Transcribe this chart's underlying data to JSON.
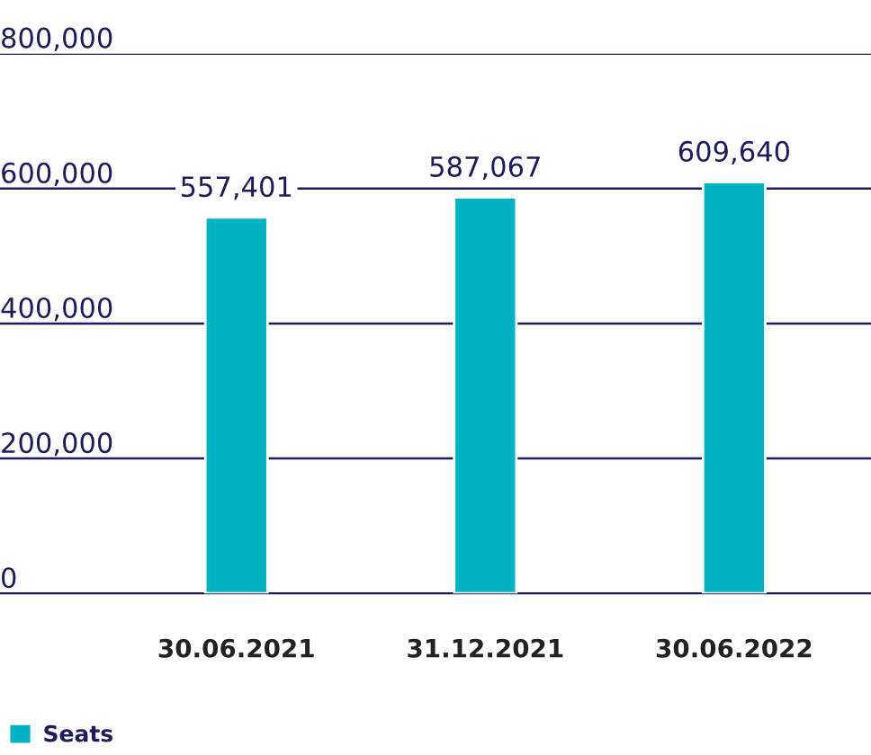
{
  "chart_data": {
    "type": "bar",
    "categories": [
      "30.06.2021",
      "31.12.2021",
      "30.06.2022"
    ],
    "series": [
      {
        "name": "Seats",
        "color": "#00b3c3",
        "values": [
          557401,
          587067,
          609640
        ]
      }
    ],
    "ylim": [
      0,
      800000
    ],
    "yticks": [
      {
        "value": 0,
        "label": "0"
      },
      {
        "value": 200000,
        "label": "200,000"
      },
      {
        "value": 400000,
        "label": "400,000"
      },
      {
        "value": 600000,
        "label": "600,000"
      },
      {
        "value": 800000,
        "label": "800,000"
      }
    ],
    "value_labels": [
      "557,401",
      "587,067",
      "609,640"
    ],
    "grid": "y",
    "legend": "bottom left"
  }
}
